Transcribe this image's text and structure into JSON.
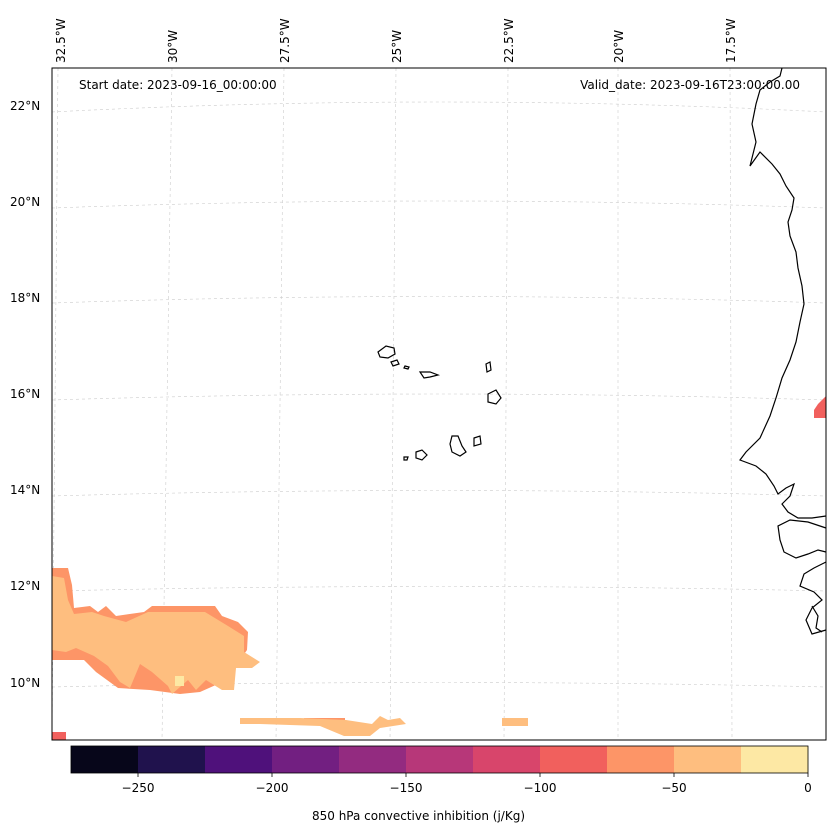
{
  "map": {
    "start_date": "Start date: 2023-09-16_00:00:00",
    "valid_date": "Valid_date: 2023-09-16T23:00:00.00",
    "lon_labels": [
      "32.5°W",
      "30°W",
      "27.5°W",
      "25°W",
      "22.5°W",
      "20°W",
      "17.5°W"
    ],
    "lat_labels": [
      "22°N",
      "20°N",
      "18°N",
      "16°N",
      "14°N",
      "12°N",
      "10°N"
    ],
    "region": "Cabo Verde Islands and West African coast",
    "features": [
      "coastline",
      "gridlines",
      "filled-contours"
    ]
  },
  "colorbar": {
    "label": "850 hPa convective inhibition (j/Kg)",
    "ticks": [
      "−250",
      "−200",
      "−150",
      "−100",
      "−50",
      "0"
    ],
    "levels": [
      -275,
      -250,
      -225,
      -200,
      -175,
      -150,
      -125,
      -100,
      -75,
      -50,
      -25,
      0
    ],
    "colors": [
      "#07061a",
      "#20124d",
      "#4f117b",
      "#721f81",
      "#932b80",
      "#b73779",
      "#d8456b",
      "#f1605d",
      "#fd9567",
      "#febe7f",
      "#fde8a4"
    ]
  }
}
